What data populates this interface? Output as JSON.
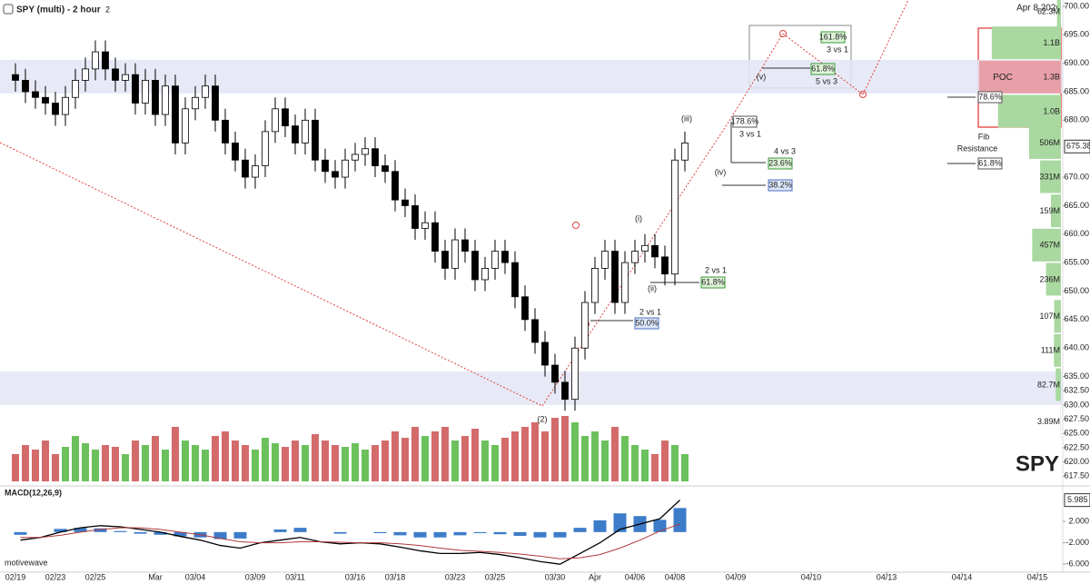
{
  "chart_data": [
    {
      "type": "candlestick",
      "title": "SPY (multi) - 2 hour",
      "subtitle": "2",
      "date_label": "Apr 8 2026",
      "watermark": "SPY",
      "x": [
        0,
        0.5,
        1,
        1.5,
        2,
        2.5,
        3,
        3.5,
        4,
        4.5,
        5,
        5.5,
        6,
        6.5,
        7,
        7.5,
        8,
        8.5,
        9,
        9.5,
        10,
        10.5,
        11,
        11.5,
        12,
        12.5,
        13,
        13.5,
        14,
        14.5,
        15,
        15.5,
        16,
        16.5,
        17,
        17.5,
        18,
        18.5,
        19,
        19.5,
        20,
        20.5,
        21,
        21.5,
        22,
        22.5,
        23,
        23.5,
        24,
        24.5,
        25,
        25.5,
        26,
        26.5,
        27,
        27.5,
        28,
        28.5,
        29,
        29.5,
        30,
        30.5,
        31,
        31.5,
        32,
        32.5,
        33,
        33.5
      ],
      "open": [
        688,
        687,
        685,
        684,
        683,
        681,
        684,
        687,
        689,
        692,
        689,
        687,
        688,
        683,
        687,
        681,
        686,
        676,
        682,
        684,
        686,
        680,
        676,
        673,
        670,
        672,
        678,
        682,
        679,
        676,
        680,
        673,
        671,
        670,
        673,
        674,
        675,
        672,
        671,
        666,
        665,
        661,
        662,
        657,
        654,
        659,
        657,
        652,
        654,
        657,
        655,
        649,
        645,
        641,
        637,
        634,
        631,
        640,
        648,
        654,
        657,
        648,
        655,
        657,
        658,
        656,
        653,
        673
      ],
      "high": [
        690,
        689,
        687,
        686,
        685,
        686,
        689,
        691,
        694,
        694,
        691,
        690,
        690,
        689,
        689,
        688,
        688,
        684,
        686,
        688,
        688,
        682,
        678,
        675,
        674,
        680,
        684,
        684,
        681,
        682,
        682,
        675,
        673,
        675,
        676,
        677,
        677,
        674,
        673,
        668,
        667,
        664,
        664,
        659,
        661,
        661,
        659,
        656,
        659,
        659,
        657,
        651,
        647,
        643,
        639,
        636,
        642,
        650,
        656,
        659,
        659,
        657,
        659,
        660,
        660,
        658,
        675,
        678
      ],
      "low": [
        685,
        683,
        682,
        681,
        679,
        679,
        682,
        685,
        687,
        687,
        685,
        685,
        681,
        681,
        679,
        679,
        674,
        674,
        680,
        682,
        678,
        674,
        671,
        668,
        668,
        670,
        676,
        677,
        674,
        674,
        671,
        669,
        668,
        668,
        671,
        672,
        670,
        669,
        664,
        663,
        659,
        659,
        655,
        652,
        652,
        655,
        650,
        650,
        652,
        653,
        647,
        643,
        639,
        635,
        632,
        629,
        629,
        638,
        646,
        652,
        646,
        646,
        653,
        655,
        654,
        651,
        651,
        671
      ],
      "close": [
        687,
        685,
        684,
        683,
        681,
        684,
        687,
        689,
        692,
        689,
        687,
        688,
        683,
        687,
        681,
        686,
        676,
        682,
        684,
        686,
        680,
        676,
        673,
        670,
        672,
        678,
        682,
        679,
        676,
        680,
        673,
        671,
        670,
        673,
        674,
        675,
        672,
        671,
        666,
        665,
        661,
        662,
        657,
        654,
        659,
        657,
        652,
        654,
        657,
        655,
        649,
        645,
        641,
        637,
        634,
        631,
        640,
        648,
        654,
        657,
        648,
        655,
        657,
        658,
        656,
        653,
        673,
        676
      ],
      "volume": [
        30,
        40,
        35,
        45,
        30,
        38,
        50,
        42,
        35,
        40,
        38,
        30,
        45,
        40,
        50,
        35,
        60,
        45,
        40,
        35,
        50,
        55,
        45,
        40,
        35,
        48,
        42,
        38,
        45,
        40,
        52,
        45,
        40,
        38,
        42,
        35,
        40,
        45,
        55,
        48,
        60,
        50,
        55,
        60,
        45,
        50,
        58,
        45,
        40,
        48,
        55,
        60,
        65,
        55,
        70,
        72,
        65,
        50,
        55,
        45,
        60,
        50,
        40,
        35,
        30,
        45,
        40,
        30
      ],
      "last_price": 675.38,
      "ylim": [
        615.8,
        701.1
      ],
      "yticks": [
        {
          "value": 700,
          "label": "700.00"
        },
        {
          "value": 695,
          "label": "695.00"
        },
        {
          "value": 690,
          "label": "690.00"
        },
        {
          "value": 685,
          "label": "685.00"
        },
        {
          "value": 680,
          "label": "680.00"
        },
        {
          "value": 670,
          "label": "670.00"
        },
        {
          "value": 665,
          "label": "665.00"
        },
        {
          "value": 660,
          "label": "660.00"
        },
        {
          "value": 655,
          "label": "655.00"
        },
        {
          "value": 650,
          "label": "650.00"
        },
        {
          "value": 645,
          "label": "645.00"
        },
        {
          "value": 640,
          "label": "640.00"
        },
        {
          "value": 635,
          "label": "635.00"
        },
        {
          "value": 632.5,
          "label": "632.50"
        },
        {
          "value": 630,
          "label": "630.00"
        },
        {
          "value": 627.5,
          "label": "627.50"
        },
        {
          "value": 625,
          "label": "625.00"
        },
        {
          "value": 622.5,
          "label": "622.50"
        },
        {
          "value": 620,
          "label": "620.00"
        },
        {
          "value": 617.5,
          "label": "617.50"
        }
      ],
      "xticks": [
        {
          "value": 0,
          "label": "02/19"
        },
        {
          "value": 2,
          "label": "02/23"
        },
        {
          "value": 4,
          "label": "02/25"
        },
        {
          "value": 7,
          "label": "Mar"
        },
        {
          "value": 9,
          "label": "03/04"
        },
        {
          "value": 12,
          "label": "03/09"
        },
        {
          "value": 14,
          "label": "03/11"
        },
        {
          "value": 17,
          "label": "03/16"
        },
        {
          "value": 19,
          "label": "03/18"
        },
        {
          "value": 22,
          "label": "03/23"
        },
        {
          "value": 24,
          "label": "03/25"
        },
        {
          "value": 27,
          "label": "03/30"
        },
        {
          "value": 29,
          "label": "Apr"
        },
        {
          "value": 31,
          "label": "04/06"
        },
        {
          "value": 33,
          "label": "04/08"
        },
        {
          "value": 34,
          "label": "04/09"
        },
        {
          "value": 35,
          "label": "04/10"
        },
        {
          "value": 36,
          "label": "04/13"
        },
        {
          "value": 37,
          "label": "04/14"
        },
        {
          "value": 38,
          "label": "04/15"
        }
      ],
      "zones": [
        [
          684.7,
          690.6
        ],
        [
          630,
          635.9
        ]
      ],
      "volume_profile": {
        "price": [
          699,
          693.5,
          687.5,
          681.5,
          676,
          670,
          664,
          658,
          652,
          645.5,
          639.5,
          633.5,
          627
        ],
        "values": [
          62300000,
          1100000000,
          1300000000,
          1000000000,
          506000000,
          331000000,
          159000000,
          457000000,
          236000000,
          107000000,
          111000000,
          82700000,
          3890000
        ],
        "value_labels": [
          "62.3M",
          "1.1B",
          "1.3B",
          "1.0B",
          "506M",
          "331M",
          "159M",
          "457M",
          "236M",
          "107M",
          "111M",
          "82.7M",
          "3.89M"
        ],
        "colors": [
          "#a9d8a0",
          "#a9d8a0",
          "#e8a0a8",
          "#a9d8a0",
          "#a9d8a0",
          "#a9d8a0",
          "#a9d8a0",
          "#a9d8a0",
          "#a9d8a0",
          "#a9d8a0",
          "#a9d8a0",
          "#a9d8a0",
          "#a9d8a0"
        ],
        "poc_label": "POC"
      },
      "annotations": [
        "(2)",
        "(i)",
        "(ii)",
        "(iii)",
        "(iv)",
        "(v)",
        "178.6%",
        "3 vs 1",
        "4 vs 3",
        "23.6%",
        "38.2%",
        "2 vs 1",
        "61.8%",
        "2 vs 1",
        "50.0%",
        "161.8%",
        "3 vs 1",
        "61.8%",
        "5 vs 3",
        "78.6%",
        "Fib",
        "Resistance",
        "61.8%"
      ]
    },
    {
      "type": "line",
      "title": "MACD(12,26,9)",
      "source": "motivewave",
      "x": [
        0.25,
        1.25,
        2.25,
        3.25,
        4.25,
        5.25,
        6.25,
        7.25,
        8.25,
        9.25,
        10.25,
        11.25,
        12.25,
        13.25,
        14.25,
        15.25,
        16.25,
        17.25,
        18.25,
        19.25,
        20.25,
        21.25,
        22.25,
        23.25,
        24.25,
        25.25,
        26.25,
        27.25,
        28.25,
        29.25,
        30.25,
        31.25,
        32.25,
        33.25
      ],
      "series": [
        {
          "color": "#000000",
          "values": [
            -1.5,
            -1,
            0,
            0.8,
            1.2,
            1,
            0.5,
            0,
            -0.8,
            -1.5,
            -2.5,
            -3,
            -2,
            -1.5,
            -1,
            -1.8,
            -2.2,
            -2,
            -2.2,
            -2.8,
            -3.5,
            -4,
            -4,
            -3.8,
            -4.2,
            -4.8,
            -5.5,
            -6,
            -4,
            -2,
            0.5,
            1.5,
            2.5,
            5.985
          ]
        },
        {
          "color": "#b03a3a",
          "values": [
            -1,
            -1,
            -0.6,
            0,
            0.5,
            0.8,
            0.8,
            0.5,
            0,
            -0.5,
            -1.2,
            -1.8,
            -2,
            -2,
            -1.8,
            -1.8,
            -1.9,
            -2,
            -2,
            -2.2,
            -2.5,
            -3,
            -3.4,
            -3.6,
            -3.8,
            -4.1,
            -4.5,
            -5,
            -4.8,
            -4.2,
            -3,
            -1.5,
            0.2,
            1.5
          ]
        }
      ],
      "histogram": {
        "color": "#3d7cc9",
        "values": [
          -0.5,
          0,
          0.6,
          0.8,
          0.7,
          0.2,
          -0.3,
          -0.5,
          -0.8,
          -1,
          -1.3,
          -1.2,
          0,
          0.5,
          0.8,
          0,
          -0.3,
          0,
          -0.2,
          -0.6,
          -1,
          -1,
          -0.6,
          -0.2,
          -0.4,
          -0.7,
          -1,
          -1,
          0.8,
          2.2,
          3.5,
          3,
          2.3,
          4.5
        ]
      },
      "ylim": [
        -7.5,
        8.3
      ],
      "yticks": [
        {
          "value": 2,
          "label": "2.000"
        },
        {
          "value": -2,
          "label": "-2.000"
        },
        {
          "value": -6,
          "label": "-6.000"
        }
      ]
    }
  ]
}
